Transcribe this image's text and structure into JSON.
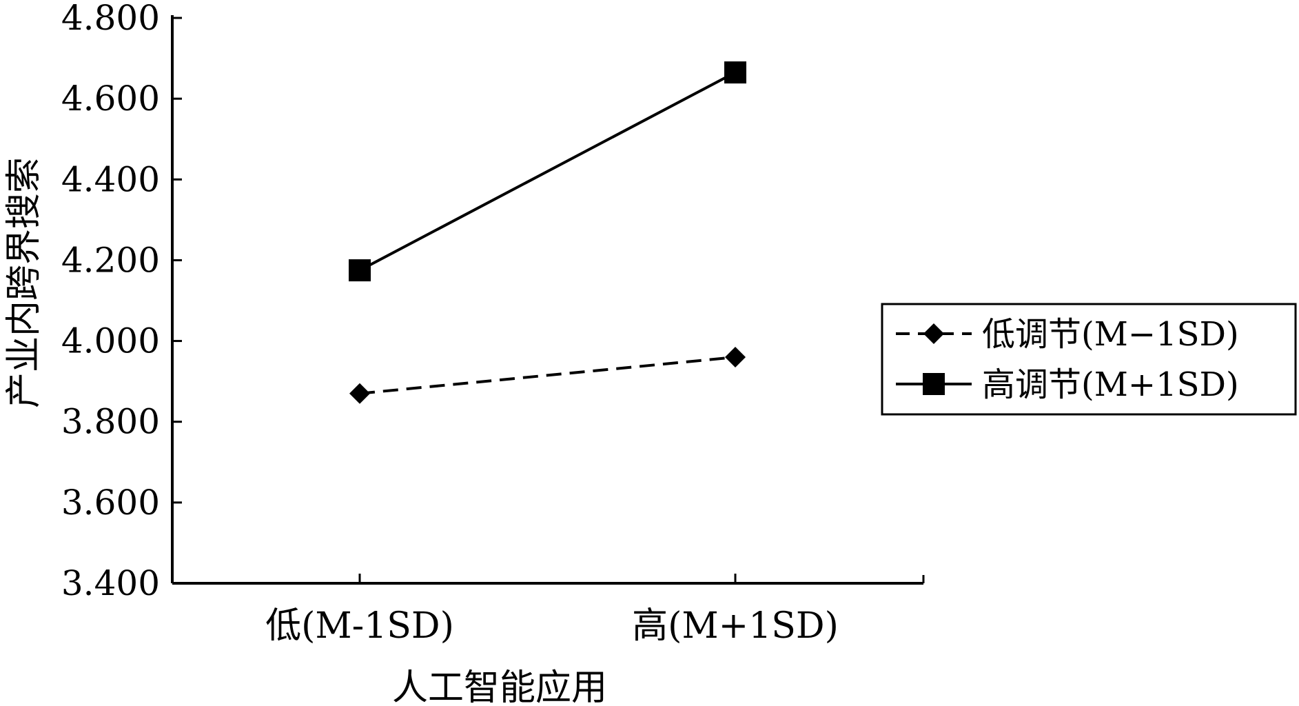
{
  "chart_data": {
    "type": "line",
    "title": "",
    "xlabel": "人工智能应用",
    "ylabel": "产业内跨界搜索",
    "categories": [
      "低(M-1SD)",
      "高(M+1SD)"
    ],
    "ylim": [
      3.4,
      4.8
    ],
    "yticks": [
      3.4,
      3.6,
      3.8,
      4.0,
      4.2,
      4.4,
      4.6,
      4.8
    ],
    "ytick_labels": [
      "3.400",
      "3.600",
      "3.800",
      "4.000",
      "4.200",
      "4.400",
      "4.600",
      "4.800"
    ],
    "grid": false,
    "legend_position": "right",
    "series": [
      {
        "name": "低调节(M−1SD)",
        "values": [
          3.87,
          3.96
        ],
        "line": "dashed",
        "marker": "diamond",
        "color": "#000000"
      },
      {
        "name": "高调节(M+1SD)",
        "values": [
          4.175,
          4.665
        ],
        "line": "solid",
        "marker": "square",
        "color": "#000000"
      }
    ]
  }
}
